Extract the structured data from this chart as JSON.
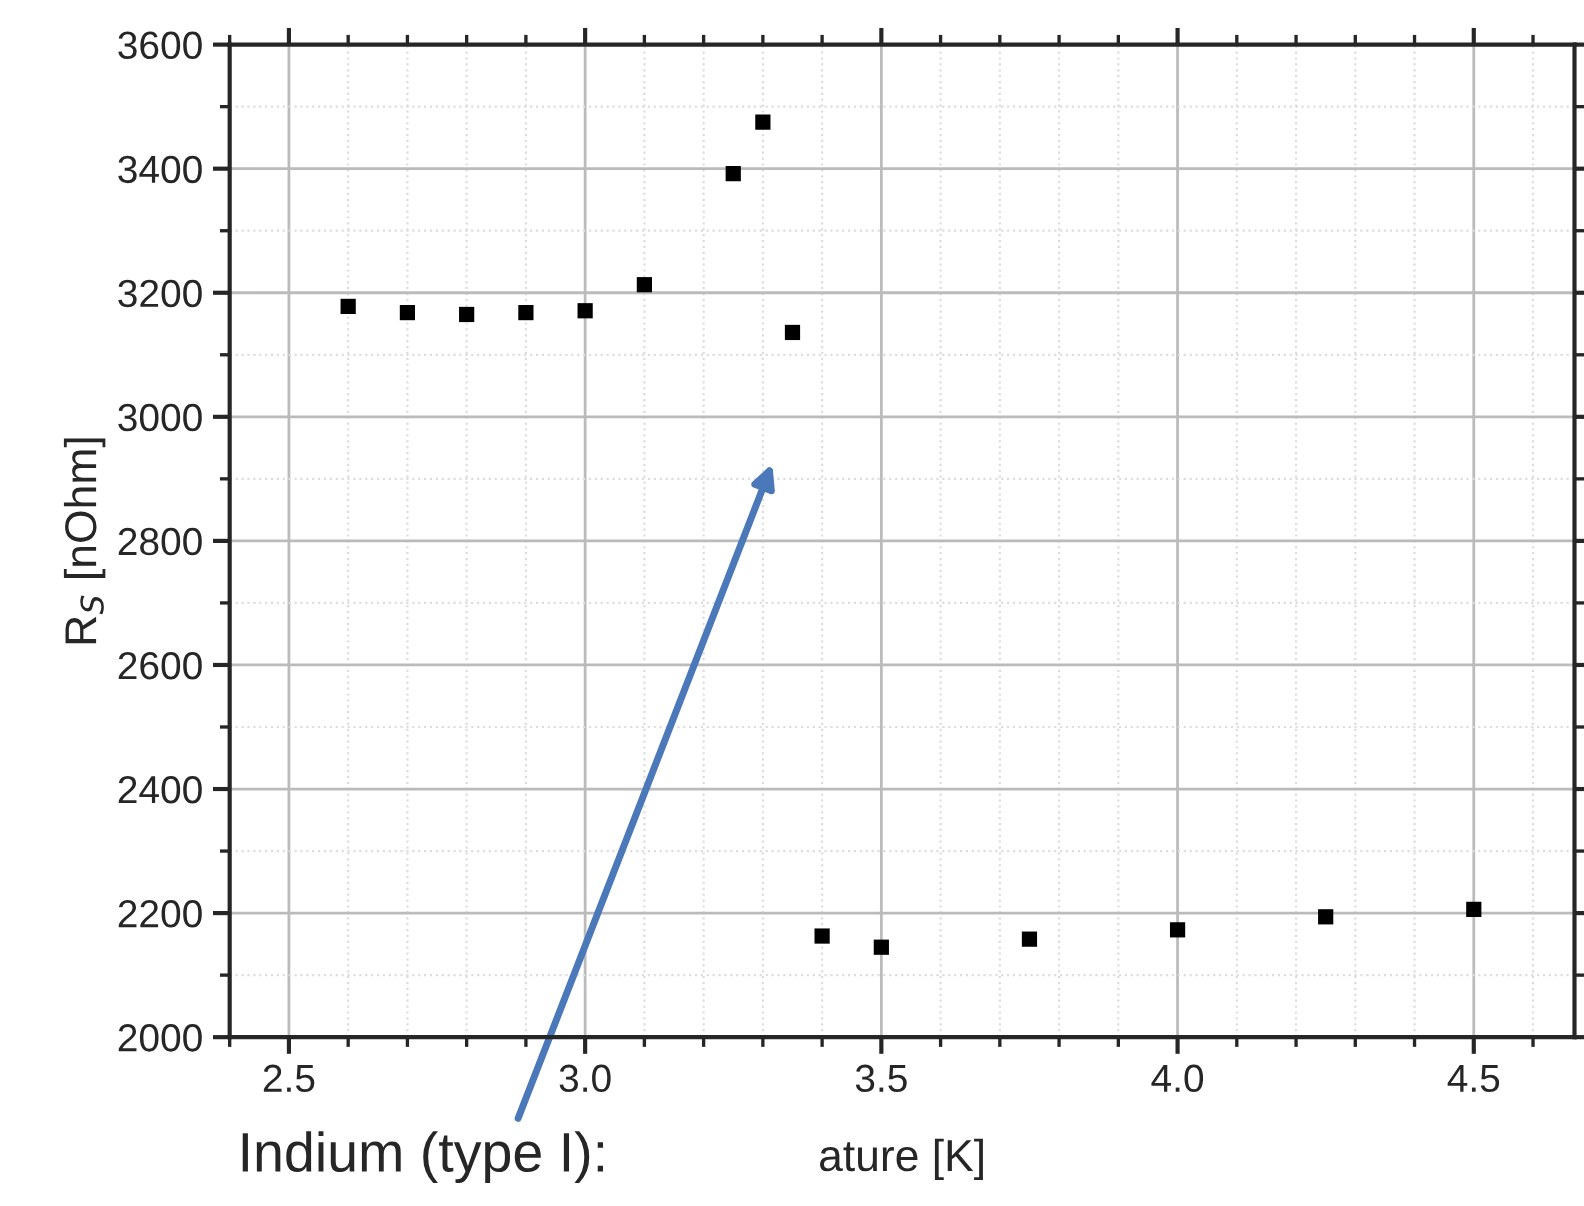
{
  "chart_data": {
    "type": "scatter",
    "xlabel": "ature [K]",
    "ylabel": "R$_{S}$ [nOhm]",
    "x": [
      2.6,
      2.7,
      2.8,
      2.9,
      3.0,
      3.1,
      3.25,
      3.3,
      3.35,
      3.4,
      3.5,
      3.75,
      4.0,
      4.25,
      4.5
    ],
    "series": [
      {
        "color": "#000000",
        "values": [
          3178,
          3168,
          3165,
          3168,
          3171,
          3213,
          3392,
          3475,
          3136,
          2163,
          2145,
          2158,
          2173,
          2194,
          2206
        ]
      }
    ],
    "marker": "square",
    "grid": true,
    "xlim": [
      2.4,
      4.67
    ],
    "xticks": [
      2.5,
      {
        "value": 3,
        "label": "3.0"
      },
      3.5,
      {
        "value": 4,
        "label": "4.0"
      },
      4.5
    ],
    "ylim": [
      2000,
      3600
    ],
    "yticks": [
      2000,
      2200,
      2400,
      2600,
      2800,
      3000,
      3200,
      3400,
      3600
    ],
    "annotations": [
      "Indium (type I):"
    ]
  }
}
